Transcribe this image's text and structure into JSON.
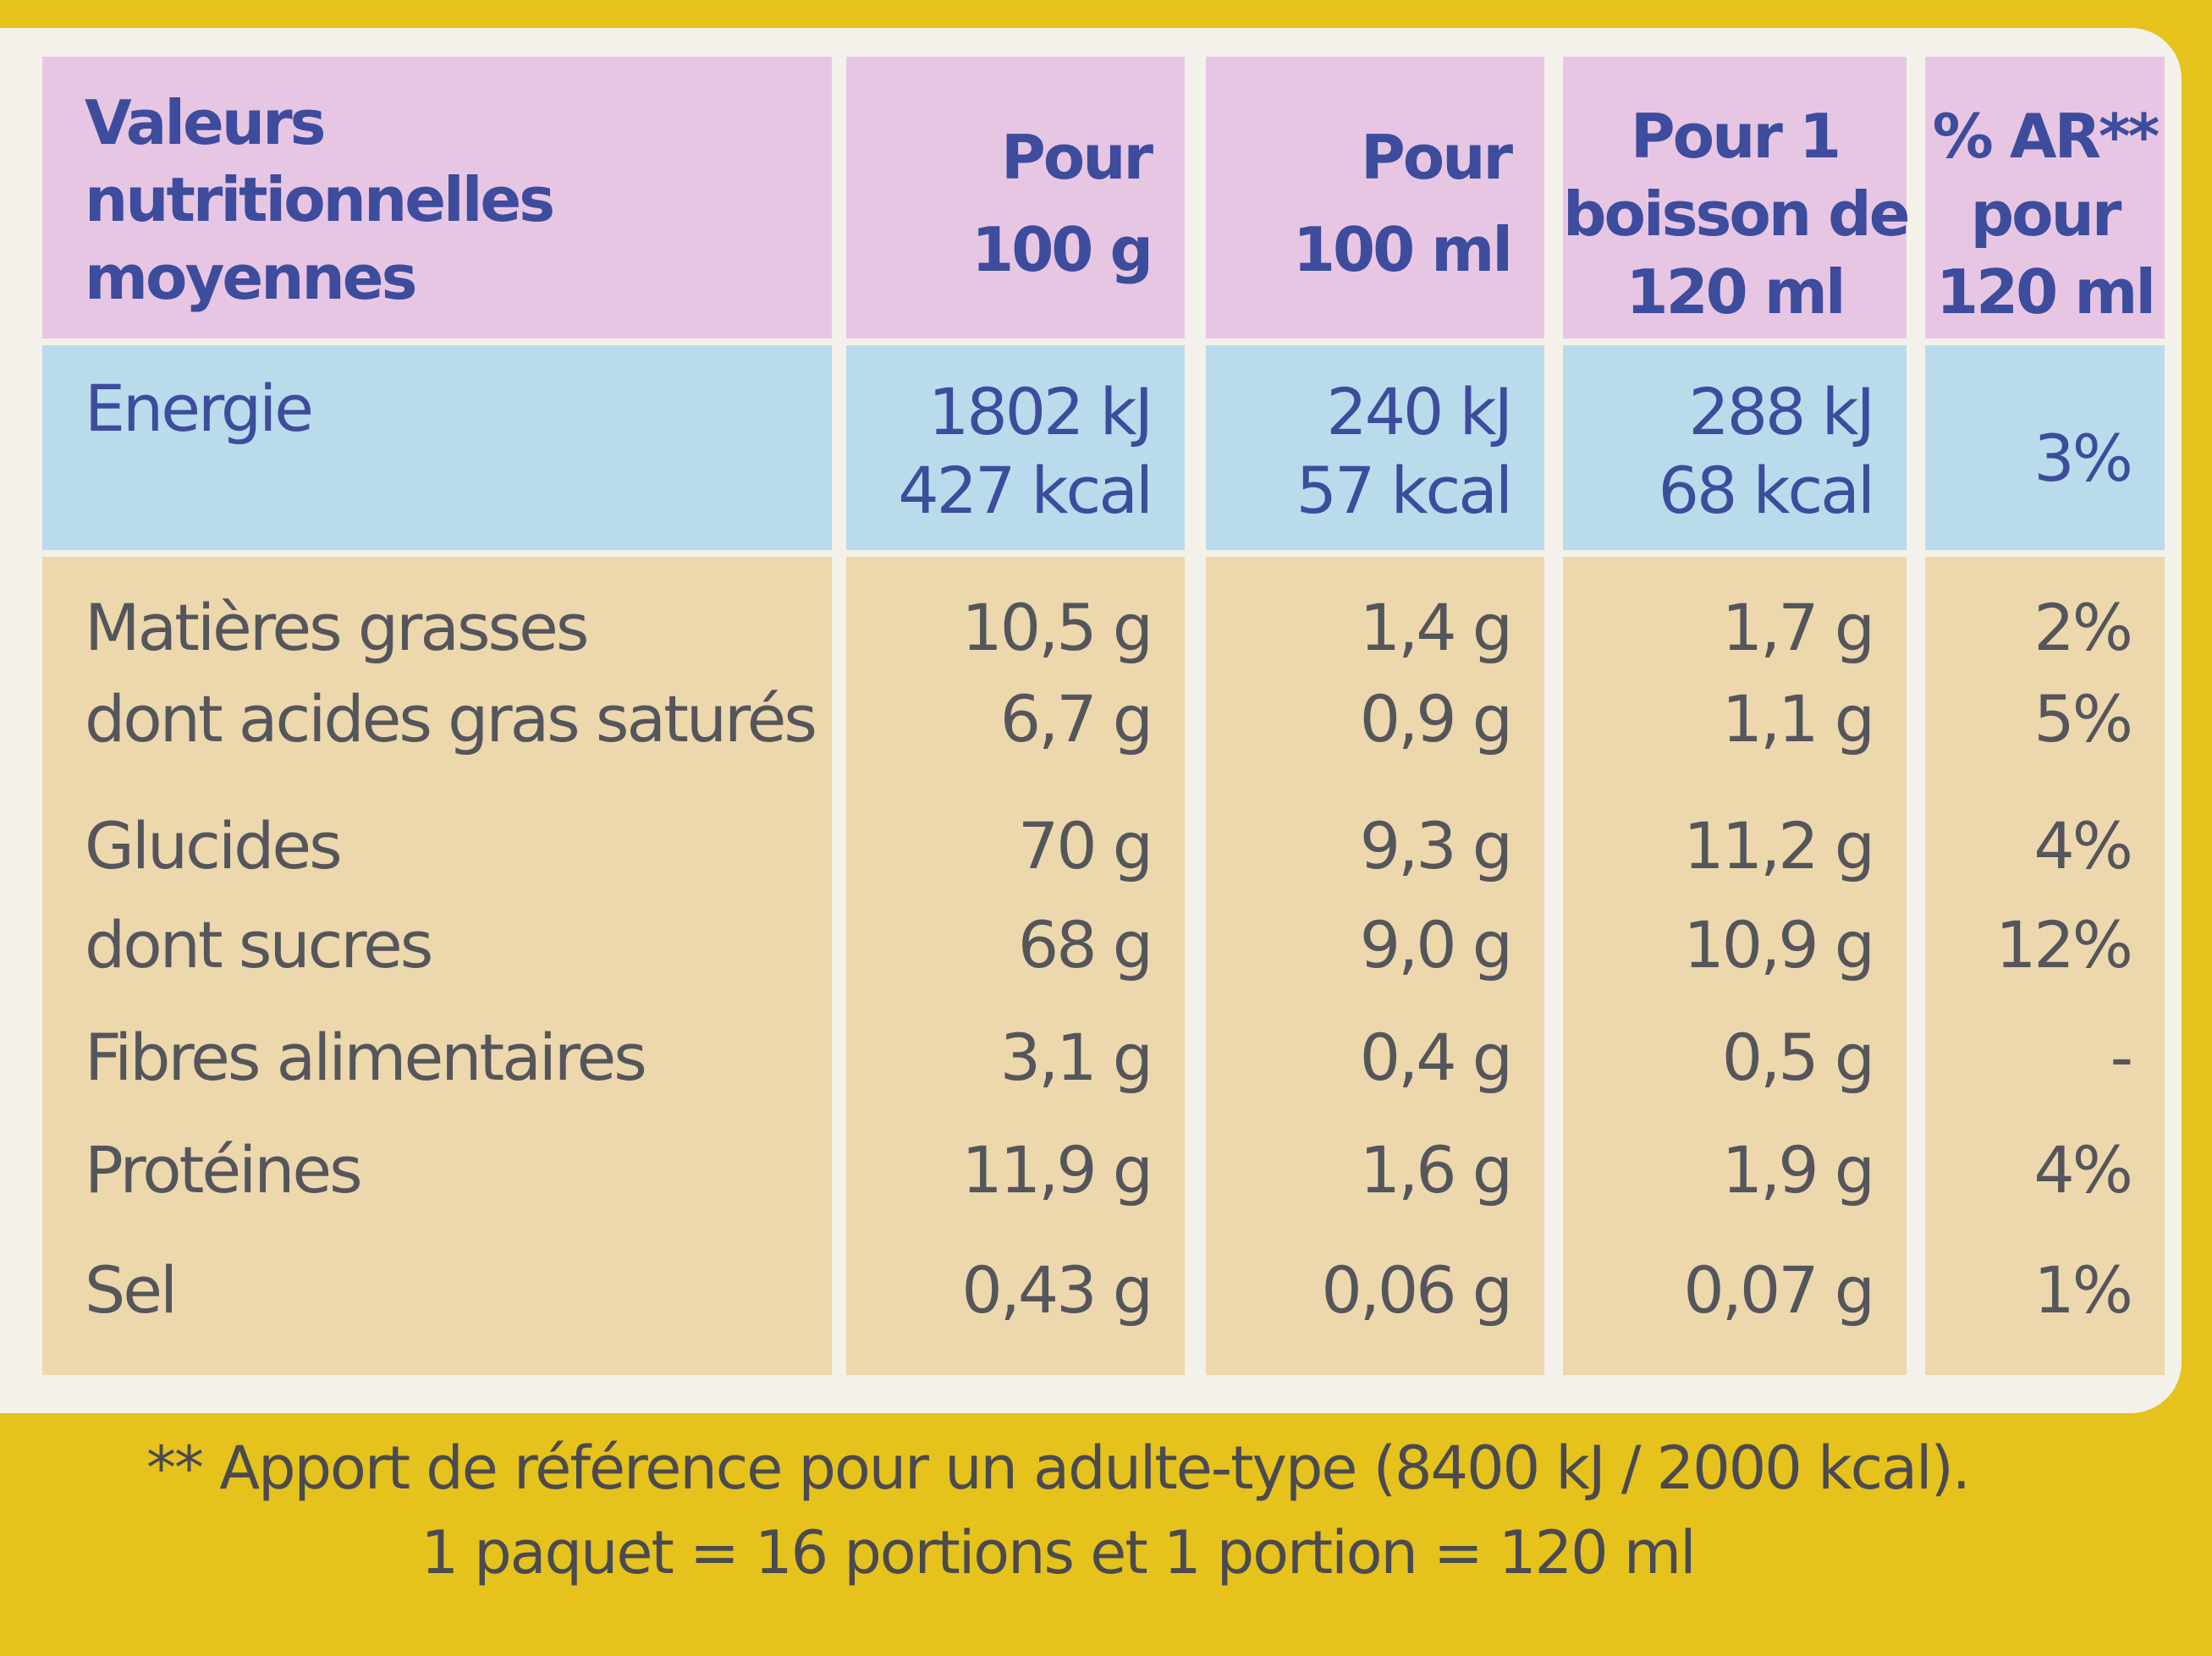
{
  "table": {
    "header": [
      [
        "Valeurs",
        "nutritionnelles",
        "moyennes"
      ],
      [
        "Pour",
        "100 g"
      ],
      [
        "Pour",
        "100 ml"
      ],
      [
        "Pour 1",
        "boisson de",
        "120 ml"
      ],
      [
        "% AR**",
        "pour",
        "120 ml"
      ]
    ],
    "energy": [
      [
        "Energie"
      ],
      [
        "1802 kJ",
        "427 kcal"
      ],
      [
        "240 kJ",
        "57 kcal"
      ],
      [
        "288 kJ",
        "68 kcal"
      ],
      [
        "3%"
      ]
    ],
    "rows": [
      [
        "Matières grasses",
        "10,5 g",
        "1,4 g",
        "1,7 g",
        "2%"
      ],
      [
        "dont acides gras saturés",
        "6,7 g",
        "0,9 g",
        "1,1 g",
        "5%"
      ],
      [
        "Glucides",
        "70 g",
        "9,3 g",
        "11,2 g",
        "4%"
      ],
      [
        "dont sucres",
        "68 g",
        "9,0 g",
        "10,9 g",
        "12%"
      ],
      [
        "Fibres alimentaires",
        "3,1 g",
        "0,4 g",
        "0,5 g",
        "-"
      ],
      [
        "Protéines",
        "11,9 g",
        "1,6 g",
        "1,9 g",
        "4%"
      ],
      [
        "Sel",
        "0,43 g",
        "0,06 g",
        "0,07 g",
        "1%"
      ]
    ]
  },
  "footnote": [
    "** Apport de référence pour un adulte-type (8400 kJ / 2000 kcal).",
    "1 paquet = 16 portions et 1 portion = 120 ml"
  ]
}
